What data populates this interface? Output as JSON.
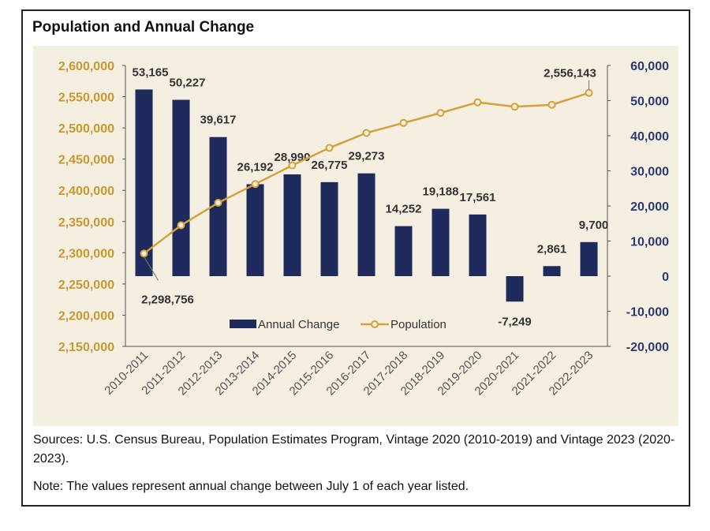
{
  "title": "Population and Annual Change",
  "sources": "Sources: U.S. Census Bureau, Population Estimates Program, Vintage 2020 (2010-2019) and Vintage 2023 (2020-2023).",
  "note": "Note: The values represent annual change between July 1 of each year listed.",
  "colors": {
    "bars": "#1f2a5c",
    "line": "#d4a13a",
    "background": "#f5efe2",
    "left_axis": "#c9982e",
    "right_axis": "#2b3a73"
  },
  "chart_data": {
    "type": "bar",
    "categories": [
      "2010-2011",
      "2011-2012",
      "2012-2013",
      "2013-2014",
      "2014-2015",
      "2015-2016",
      "2016-2017",
      "2017-2018",
      "2018-2019",
      "2019-2020",
      "2020-2021",
      "2021-2022",
      "2022-2023"
    ],
    "series": [
      {
        "name": "Annual Change",
        "type": "bar",
        "axis": "right",
        "values": [
          53165,
          50227,
          39617,
          26192,
          28990,
          26775,
          29273,
          14252,
          19188,
          17561,
          -7249,
          2861,
          9700
        ],
        "labels": [
          "53,165",
          "50,227",
          "39,617",
          "26,192",
          "28,990",
          "26,775",
          "29,273",
          "14,252",
          "19,188",
          "17,561",
          "-7,249",
          "2,861",
          "9,700"
        ]
      },
      {
        "name": "Population",
        "type": "line",
        "axis": "left",
        "values": [
          2298756,
          2344000,
          2380000,
          2410000,
          2440000,
          2468000,
          2492000,
          2508000,
          2524000,
          2541000,
          2534000,
          2537000,
          2556143
        ],
        "labels": {
          "0": "2,298,756",
          "12": "2,556,143"
        }
      }
    ],
    "left_axis": {
      "range": [
        2150000,
        2600000
      ],
      "ticks": [
        "2,600,000",
        "2,550,000",
        "2,500,000",
        "2,450,000",
        "2,400,000",
        "2,350,000",
        "2,300,000",
        "2,250,000",
        "2,200,000",
        "2,150,000"
      ]
    },
    "right_axis": {
      "range": [
        -20000,
        60000
      ],
      "ticks": [
        "60,000",
        "50,000",
        "40,000",
        "30,000",
        "20,000",
        "10,000",
        "0",
        "-10,000",
        "-20,000"
      ]
    },
    "legend_position": "bottom-center",
    "grid": false
  }
}
